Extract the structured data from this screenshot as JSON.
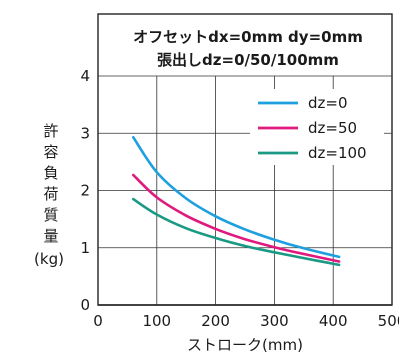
{
  "chart_data": {
    "type": "line",
    "title_lines": [
      "オフセットdx=0mm dy=0mm",
      "張出しdz=0/50/100mm"
    ],
    "xlabel": "ストローク(mm)",
    "ylabel_chars": [
      "許",
      "容",
      "負",
      "荷",
      "質",
      "量"
    ],
    "ylabel_unit": "(kg)",
    "xlim": [
      0,
      500
    ],
    "ylim": [
      0,
      4
    ],
    "x_ticks": [
      "0",
      "100",
      "200",
      "300",
      "400",
      "500"
    ],
    "y_ticks": [
      "0",
      "1",
      "2",
      "3",
      "4"
    ],
    "grid": true,
    "legend_position": "top-right",
    "series": [
      {
        "name": "dz=0",
        "color": "#1e9fe0",
        "x": [
          60,
          100,
          150,
          200,
          250,
          300,
          350,
          410
        ],
        "y": [
          2.93,
          2.32,
          1.86,
          1.55,
          1.32,
          1.14,
          0.99,
          0.84
        ]
      },
      {
        "name": "dz=50",
        "color": "#e0197e",
        "x": [
          60,
          100,
          150,
          200,
          250,
          300,
          350,
          410
        ],
        "y": [
          2.27,
          1.88,
          1.56,
          1.33,
          1.15,
          1.01,
          0.89,
          0.76
        ]
      },
      {
        "name": "dz=100",
        "color": "#1a9a84",
        "x": [
          60,
          100,
          150,
          200,
          250,
          300,
          350,
          410
        ],
        "y": [
          1.85,
          1.58,
          1.34,
          1.17,
          1.03,
          0.92,
          0.82,
          0.7
        ]
      }
    ]
  }
}
